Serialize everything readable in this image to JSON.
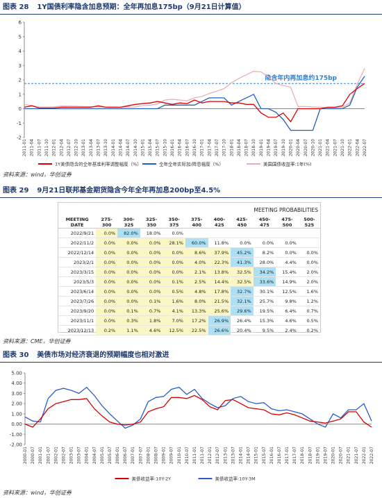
{
  "sections": [
    {
      "label": "图表 28",
      "title": "1Y国债利率隐含加息预期：全年再加息175bp（9月21日计算值）",
      "source": "资料来源：wind，华创证券"
    },
    {
      "label": "图表 29",
      "title": "9月21日联邦基金期货隐含今年全年再加息200bp至4.5%",
      "source": "资料来源：CME，华创证券"
    },
    {
      "label": "图表 30",
      "title": "美债市场对经济衰退的预期幅度也相对激进",
      "source": "资料来源：wind，华创证券"
    }
  ],
  "chart_data": [
    {
      "type": "line",
      "ylim": [
        -2,
        6
      ],
      "yticks": [
        -2,
        -1,
        0,
        1,
        2,
        3,
        4,
        5,
        6
      ],
      "grid": false,
      "annotation": {
        "text": "隐含年内再加息约175bp",
        "y": 1.75
      },
      "categories": [
        "2011-01",
        "2011-04",
        "2011-07",
        "2011-10",
        "2012-01",
        "2012-04",
        "2012-07",
        "2012-10",
        "2013-01",
        "2013-04",
        "2013-07",
        "2013-10",
        "2014-01",
        "2014-04",
        "2014-07",
        "2014-10",
        "2015-01",
        "2015-04",
        "2015-07",
        "2015-10",
        "2016-01",
        "2016-04",
        "2016-07",
        "2016-10",
        "2017-01",
        "2017-04",
        "2017-07",
        "2017-10",
        "2018-01",
        "2018-04",
        "2018-07",
        "2018-10",
        "2019-01",
        "2019-04",
        "2019-07",
        "2019-10",
        "2020-01",
        "2020-04",
        "2020-07",
        "2020-10",
        "2021-01",
        "2021-04",
        "2021-07",
        "2021-10",
        "2022-01",
        "2022-04",
        "2022-07"
      ],
      "series": [
        {
          "name": "1Y美债隐含的全年基准利率调整幅度（%）",
          "color": "#e00000",
          "values": [
            0.1,
            0.2,
            0.05,
            0.05,
            0.05,
            0.1,
            0.1,
            0.1,
            0.1,
            0.1,
            0.2,
            0.1,
            0.1,
            0.1,
            0.2,
            0.3,
            0.35,
            0.4,
            0.5,
            0.4,
            0.3,
            0.4,
            0.35,
            0.6,
            0.4,
            0.5,
            0.5,
            0.5,
            0.4,
            0.4,
            0.3,
            0.3,
            -0.3,
            -0.6,
            -0.6,
            -0.3,
            -0.9,
            0,
            0,
            0,
            0,
            0.1,
            0.1,
            0.2,
            1.0,
            1.4,
            1.75
          ]
        },
        {
          "name": "全年全年实际加/降息幅度（%）",
          "color": "#1f5fbf",
          "values": [
            0,
            0,
            0,
            0,
            0,
            0,
            0,
            0,
            0,
            0,
            0,
            0,
            0,
            0,
            0,
            0,
            0,
            0,
            0,
            0.25,
            0.25,
            0.25,
            0.25,
            0.25,
            0.5,
            0.75,
            0.75,
            0.75,
            0.25,
            0.5,
            0.75,
            1.0,
            0,
            0,
            -0.25,
            -0.75,
            -1.5,
            -1.5,
            -1.5,
            -1.5,
            0,
            0,
            0,
            0,
            0.25,
            1.5,
            2.25
          ]
        },
        {
          "name": "美国国债收益率:1年(%)",
          "color": "#e8b0b4",
          "values": [
            0.29,
            0.22,
            0.12,
            0.12,
            0.13,
            0.18,
            0.18,
            0.17,
            0.15,
            0.14,
            0.12,
            0.11,
            0.12,
            0.1,
            0.11,
            0.12,
            0.22,
            0.24,
            0.33,
            0.6,
            0.65,
            0.6,
            0.55,
            0.75,
            0.85,
            1.05,
            1.22,
            1.4,
            1.8,
            2.1,
            2.35,
            2.6,
            2.55,
            2.2,
            1.75,
            1.6,
            1.5,
            0.15,
            0.15,
            0.12,
            0.1,
            0.06,
            0.07,
            0.1,
            0.4,
            1.7,
            2.8
          ]
        }
      ]
    },
    {
      "type": "line",
      "ylim": [
        -2,
        5
      ],
      "yticks": [
        {
          "value": -2,
          "label": "-2.00"
        },
        {
          "value": -1,
          "label": "-1.00"
        },
        {
          "value": 0,
          "label": "0.00"
        },
        {
          "value": 1,
          "label": "1.00"
        },
        {
          "value": 2,
          "label": "2.00"
        },
        {
          "value": 3,
          "label": "3.00"
        },
        {
          "value": 4,
          "label": "4.00"
        },
        {
          "value": 5,
          "label": "5.00"
        }
      ],
      "grid": false,
      "categories": [
        "2000-01",
        "2000-07",
        "2001-01",
        "2001-07",
        "2002-01",
        "2002-07",
        "2003-01",
        "2003-07",
        "2004-01",
        "2004-07",
        "2005-01",
        "2005-07",
        "2006-01",
        "2006-07",
        "2007-01",
        "2007-07",
        "2008-01",
        "2008-07",
        "2009-01",
        "2009-07",
        "2010-01",
        "2010-07",
        "2011-01",
        "2011-07",
        "2012-01",
        "2012-07",
        "2013-01",
        "2013-07",
        "2014-01",
        "2014-07",
        "2015-01",
        "2015-07",
        "2016-01",
        "2016-07",
        "2017-01",
        "2017-07",
        "2018-01",
        "2018-07",
        "2019-01",
        "2019-07",
        "2020-01",
        "2020-07",
        "2021-01",
        "2021-07",
        "2022-01",
        "2022-07"
      ],
      "series": [
        {
          "name": "美债收益率:10Y-2Y",
          "color": "#d40000",
          "values": [
            0.0,
            -0.3,
            0.5,
            1.5,
            2.0,
            2.2,
            2.4,
            2.4,
            2.5,
            1.5,
            0.8,
            0.2,
            0.0,
            -0.1,
            0.0,
            0.2,
            1.2,
            1.5,
            1.7,
            2.6,
            2.6,
            2.5,
            2.8,
            2.4,
            1.7,
            1.4,
            2.3,
            2.4,
            2.0,
            1.6,
            1.5,
            1.4,
            1.0,
            0.9,
            1.1,
            0.9,
            0.6,
            0.3,
            0.2,
            0.1,
            0.3,
            0.5,
            1.2,
            1.2,
            0.2,
            -0.3
          ]
        },
        {
          "name": "美债收益率:10Y-3M",
          "color": "#2a5cc9",
          "values": [
            0.7,
            0.3,
            0.2,
            2.5,
            3.3,
            3.5,
            3.3,
            3.0,
            3.6,
            2.8,
            1.8,
            1.0,
            0.3,
            -0.4,
            -0.1,
            0.5,
            2.2,
            2.6,
            2.7,
            3.4,
            3.6,
            2.9,
            3.4,
            2.5,
            2.0,
            1.6,
            1.8,
            2.5,
            2.7,
            2.2,
            2.0,
            2.1,
            1.5,
            1.3,
            1.4,
            1.2,
            1.0,
            0.5,
            0.0,
            -0.3,
            1.0,
            0.6,
            1.4,
            1.4,
            2.0,
            0.3
          ]
        }
      ]
    }
  ],
  "table": {
    "title": "MEETING PROBABILITIES",
    "header": [
      "MEETING DATE",
      "275-300",
      "300-325",
      "325-350",
      "350-375",
      "375-400",
      "400-425",
      "425-450",
      "450-475",
      "475-500",
      "500-525"
    ],
    "rows": [
      [
        "2022/9/21",
        "0.0%",
        "82.0%",
        "18.0%",
        "0.0%",
        "",
        "",
        "",
        "",
        "",
        ""
      ],
      [
        "2022/11/2",
        "0.0%",
        "0.0%",
        "0.0%",
        "28.1%",
        "60.0%",
        "11.8%",
        "0.0%",
        "0.0%",
        "0.0%",
        ""
      ],
      [
        "2022/12/14",
        "0.0%",
        "0.0%",
        "0.0%",
        "0.0%",
        "8.6%",
        "37.9%",
        "45.2%",
        "8.2%",
        "0.0%",
        "0.0%"
      ],
      [
        "2023/2/1",
        "0.0%",
        "0.0%",
        "0.0%",
        "0.0%",
        "4.0%",
        "22.3%",
        "41.3%",
        "28.0%",
        "4.4%",
        "0.0%"
      ],
      [
        "2023/3/15",
        "0.0%",
        "0.0%",
        "0.0%",
        "0.0%",
        "2.1%",
        "13.8%",
        "32.5%",
        "34.2%",
        "15.4%",
        "2.0%"
      ],
      [
        "2023/5/3",
        "0.0%",
        "0.0%",
        "0.0%",
        "0.1%",
        "2.5%",
        "14.4%",
        "32.5%",
        "33.6%",
        "14.9%",
        "2.0%"
      ],
      [
        "2023/6/14",
        "0.0%",
        "0.0%",
        "0.0%",
        "0.5%",
        "4.8%",
        "17.8%",
        "32.7%",
        "30.1%",
        "12.5%",
        "1.6%"
      ],
      [
        "2023/7/26",
        "0.0%",
        "0.0%",
        "0.1%",
        "1.6%",
        "8.0%",
        "21.5%",
        "32.1%",
        "25.7%",
        "9.8%",
        "1.2%"
      ],
      [
        "2023/9/20",
        "0.0%",
        "0.1%",
        "0.7%",
        "4.1%",
        "13.3%",
        "25.6%",
        "29.6%",
        "19.5%",
        "6.4%",
        "0.7%"
      ],
      [
        "2023/11/1",
        "0.0%",
        "0.3%",
        "1.8%",
        "7.0%",
        "17.2%",
        "26.9%",
        "26.4%",
        "15.3%",
        "4.6%",
        "0.5%"
      ],
      [
        "2023/12/13",
        "0.2%",
        "1.1%",
        "4.6%",
        "12.5%",
        "22.5%",
        "26.6%",
        "20.4%",
        "9.5%",
        "2.4%",
        "0.2%"
      ]
    ]
  }
}
